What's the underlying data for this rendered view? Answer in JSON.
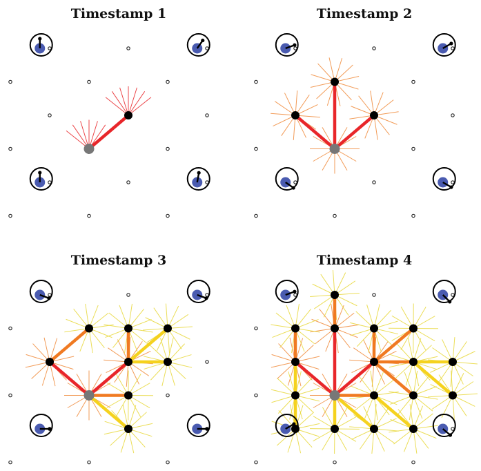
{
  "panels": [
    {
      "title": "Timestamp 1",
      "stage": 1,
      "compass_angle_deg": [
        -90,
        -55,
        -90,
        -80
      ]
    },
    {
      "title": "Timestamp 2",
      "stage": 2,
      "compass_angle_deg": [
        -20,
        -30,
        35,
        30
      ]
    },
    {
      "title": "Timestamp 3",
      "stage": 3,
      "compass_angle_deg": [
        20,
        20,
        0,
        0
      ]
    },
    {
      "title": "Timestamp 4",
      "stage": 4,
      "compass_angle_deg": [
        -20,
        45,
        -30,
        40
      ]
    }
  ],
  "colors": {
    "grid_node": "#222222",
    "root_node": "#777777",
    "tree_node": "#000000",
    "robot": "#4a5bb0",
    "edge_strong": "#e8262a",
    "edge_mid": "#f07a22",
    "edge_weak": "#f5d21e",
    "ray_red": "#e8262a",
    "ray_orange": "#f08a3a",
    "ray_yellow": "#e8d83a"
  }
}
